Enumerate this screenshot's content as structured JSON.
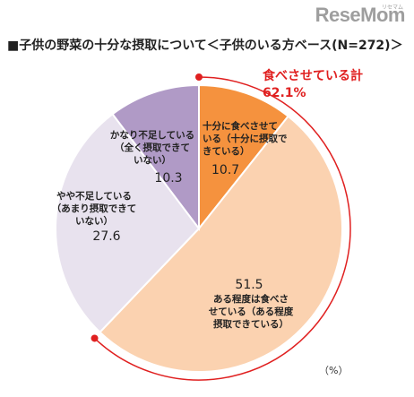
{
  "brand": {
    "logo": "ReseMom",
    "logo_sub": "リセマム"
  },
  "title": "■子供の野菜の十分な摂取について＜子供のいる方ベース(N=272)＞",
  "callout": {
    "label": "食べさせている計",
    "value": "62.1%",
    "color": "#e02020"
  },
  "unit": "（%）",
  "chart_data": {
    "type": "pie",
    "title": "■子供の野菜の十分な摂取について＜子供のいる方ベース(N=272)＞",
    "unit": "%",
    "slices": [
      {
        "label_lines": [
          "十分に食べさせて",
          "いる（十分に摂取で",
          "きている）"
        ],
        "value": 10.7,
        "value_text": "10.7",
        "color": "#f5923e"
      },
      {
        "label_lines": [
          "ある程度は食べさ",
          "せている（ある程度",
          "摂取できている）"
        ],
        "value": 51.5,
        "value_text": "51.5",
        "color": "#fbd2b0"
      },
      {
        "label_lines": [
          "やや不足している",
          "（あまり摂取できて",
          "いない）"
        ],
        "value": 27.6,
        "value_text": "27.6",
        "color": "#e8e2ee"
      },
      {
        "label_lines": [
          "かなり不足している",
          "（全く摂取できて",
          "いない）"
        ],
        "value": 10.3,
        "value_text": "10.3",
        "color": "#b09ac6"
      }
    ],
    "highlight": {
      "label": "食べさせている計",
      "value": 62.1,
      "value_text": "62.1%",
      "color": "#e02020"
    }
  }
}
